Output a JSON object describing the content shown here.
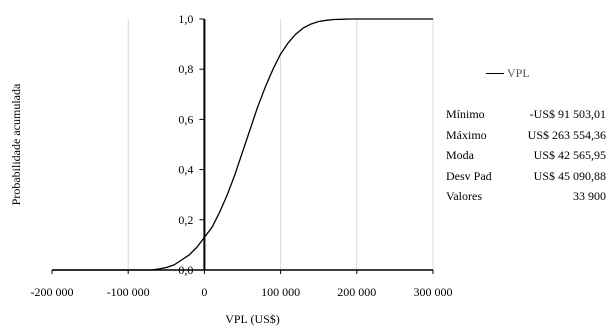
{
  "chart_data": {
    "type": "line",
    "title": "",
    "xlabel": "VPL (US$)",
    "ylabel": "Probabilidade acumulada",
    "xlim": [
      -200000,
      300000
    ],
    "ylim": [
      0,
      1
    ],
    "xticks": [
      -200000,
      -100000,
      0,
      100000,
      200000,
      300000
    ],
    "xtick_labels": [
      "-200 000",
      "-100 000",
      "0",
      "100 000",
      "200 000",
      "300 000"
    ],
    "yticks": [
      0,
      0.2,
      0.4,
      0.6,
      0.8,
      1.0
    ],
    "ytick_labels": [
      "0,0",
      "0,2",
      "0,4",
      "0,6",
      "0,8",
      "1,0"
    ],
    "grid": {
      "vertical": true,
      "horizontal": false
    },
    "legend_position": "right",
    "series": [
      {
        "name": "VPL",
        "color": "#000000",
        "x": [
          -200000,
          -70000,
          -60000,
          -50000,
          -40000,
          -30000,
          -20000,
          -10000,
          0,
          10000,
          20000,
          30000,
          40000,
          50000,
          60000,
          70000,
          80000,
          90000,
          100000,
          110000,
          120000,
          130000,
          140000,
          150000,
          160000,
          170000,
          180000,
          190000,
          200000,
          300000
        ],
        "y": [
          0,
          0,
          0.004,
          0.01,
          0.02,
          0.04,
          0.06,
          0.09,
          0.13,
          0.17,
          0.23,
          0.3,
          0.38,
          0.47,
          0.56,
          0.65,
          0.73,
          0.8,
          0.86,
          0.905,
          0.94,
          0.965,
          0.98,
          0.99,
          0.995,
          0.998,
          0.999,
          1.0,
          1.0,
          1.0
        ]
      }
    ]
  },
  "stats": [
    {
      "label": "Mínimo",
      "value": "-US$ 91 503,01"
    },
    {
      "label": "Máximo",
      "value": "US$ 263 554,36"
    },
    {
      "label": "Moda",
      "value": "US$ 42 565,95"
    },
    {
      "label": "Desv Pad",
      "value": "US$ 45 090,88"
    },
    {
      "label": "Valores",
      "value": "33 900"
    }
  ]
}
